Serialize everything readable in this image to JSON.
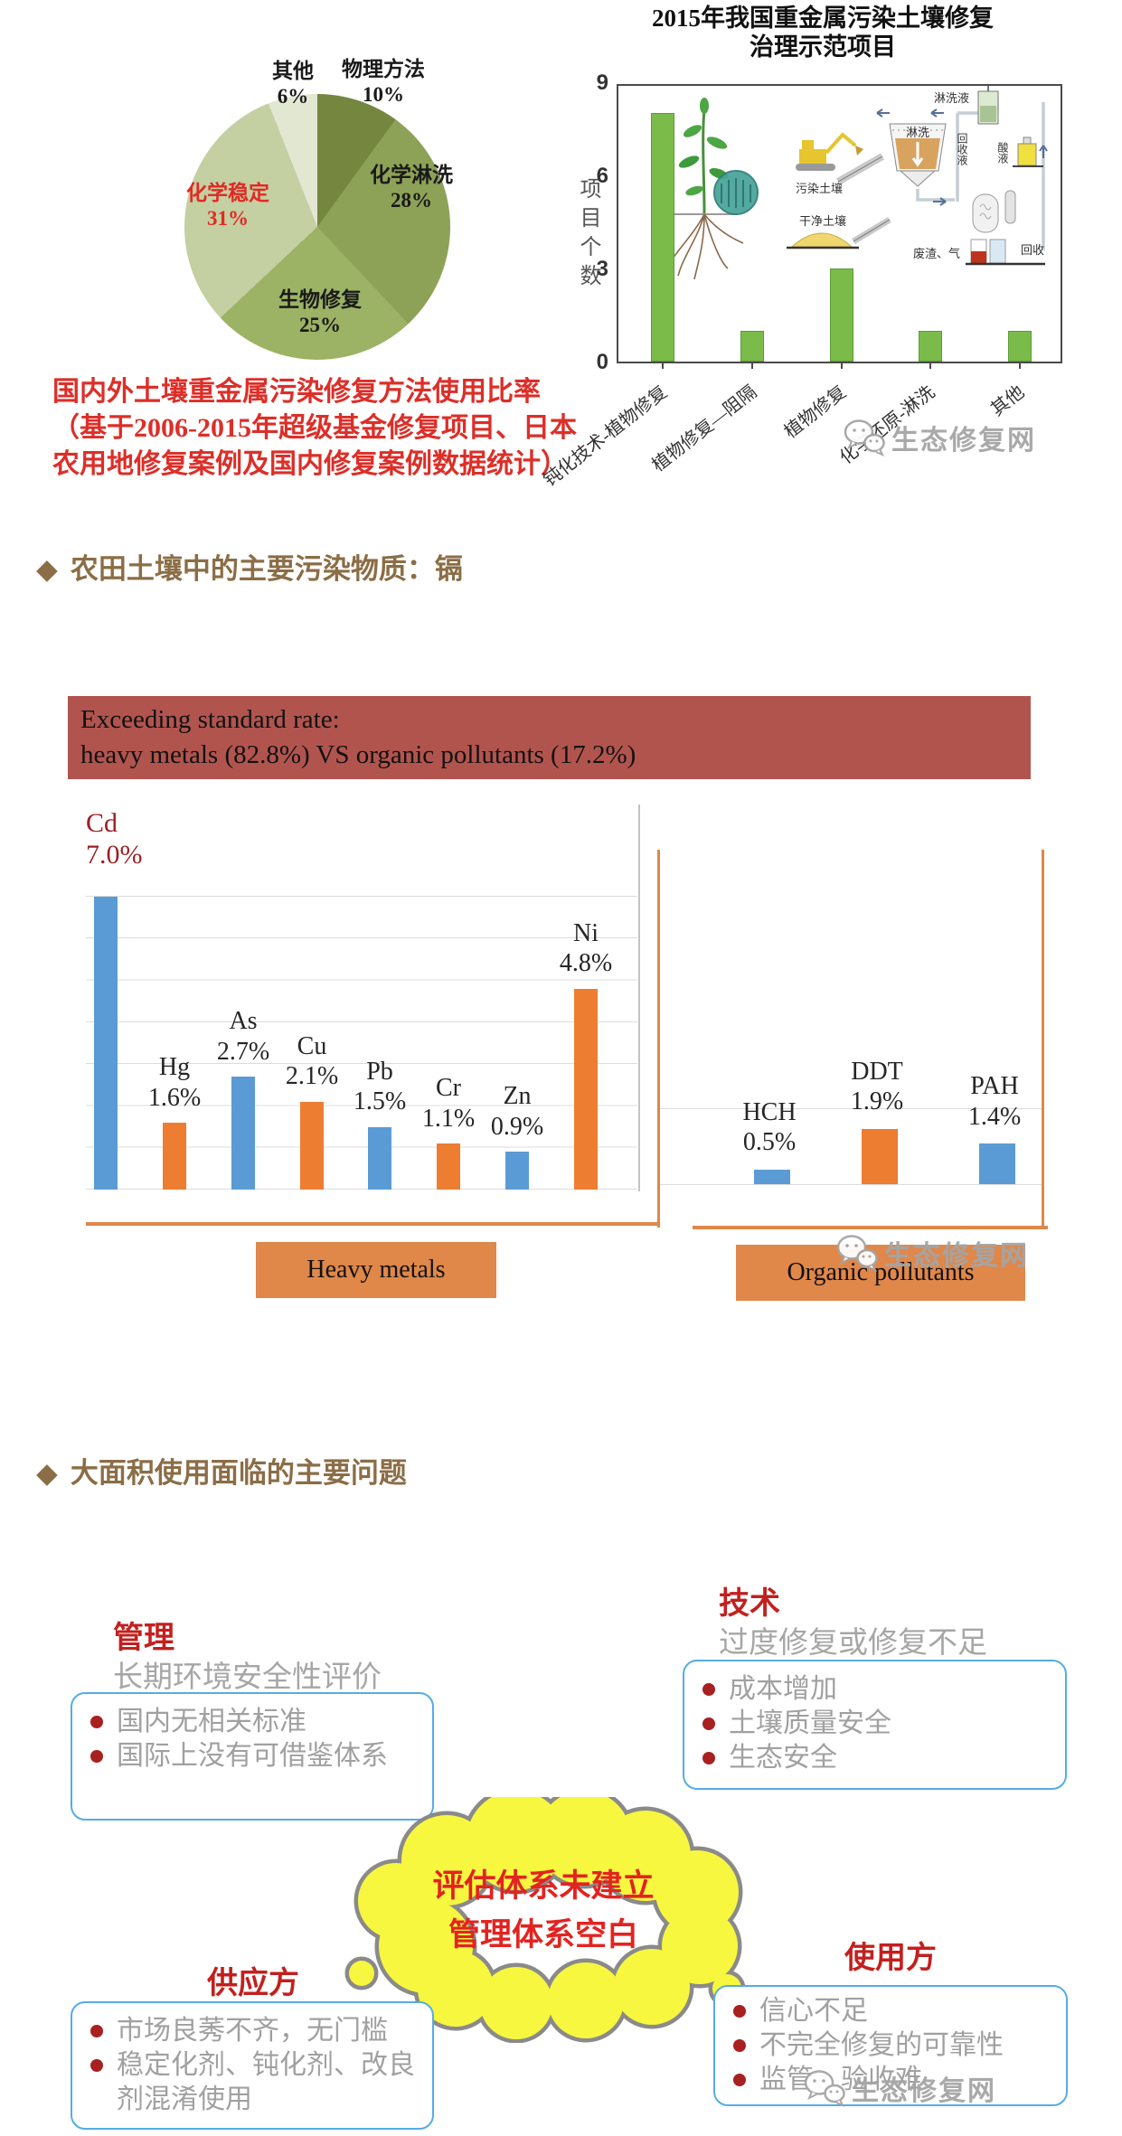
{
  "watermark": {
    "label": "生态修复网"
  },
  "top_section": {
    "caption_line1": "国内外土壤重金属污染修复方法使用比率",
    "caption_line2": "（基于2006-2015年超级基金修复项目、日本",
    "caption_line3": "农用地修复案例及国内修复案例数据统计）",
    "bar_title_line1": "2015年我国重金属污染土壤修复",
    "bar_title_line2": "治理示范项目"
  },
  "chart_data": [
    {
      "type": "pie",
      "name": "remediation-methods-share",
      "title": "国内外土壤重金属污染修复方法使用比率",
      "labels": [
        "物理方法",
        "化学淋洗",
        "生物修复",
        "化学稳定",
        "其他"
      ],
      "values": [
        10,
        28,
        25,
        31,
        6
      ],
      "pct_labels": [
        "10%",
        "28%",
        "25%",
        "31%",
        "6%"
      ],
      "colors": [
        "#75863f",
        "#8da257",
        "#9cb264",
        "#c4cfa2",
        "#e2e7d2"
      ],
      "highlight_slice": "化学稳定",
      "highlight_color": "#e02a25"
    },
    {
      "type": "bar",
      "name": "demo-projects-2015",
      "title": "2015年我国重金属污染土壤修复治理示范项目",
      "ylabel": "项目个数",
      "categories": [
        "钝化技术-植物修复",
        "植物修复—阻隔",
        "植物修复",
        "化学还原-淋洗",
        "其他"
      ],
      "values": [
        8,
        1,
        3,
        1,
        1
      ],
      "ylim": [
        0,
        9
      ],
      "yticks": [
        0,
        3,
        6,
        9
      ],
      "bar_color": "#7abb4a",
      "inset_labels": [
        "淋洗液",
        "污染土壤",
        "淋洗",
        "回收液",
        "酸液",
        "干净土壤",
        "废渣、气",
        "回收"
      ]
    },
    {
      "type": "bar",
      "name": "heavy-metals-exceeding-rate",
      "group_label": "Heavy metals",
      "categories": [
        "Cd",
        "Hg",
        "As",
        "Cu",
        "Pb",
        "Cr",
        "Zn",
        "Ni"
      ],
      "values": [
        7.0,
        1.6,
        2.7,
        2.1,
        1.5,
        1.1,
        0.9,
        4.8
      ],
      "value_labels": [
        "7.0%",
        "1.6%",
        "2.7%",
        "2.1%",
        "1.5%",
        "1.1%",
        "0.9%",
        "4.8%"
      ],
      "bar_colors": [
        "#5b9bd5",
        "#ed7d31"
      ],
      "highlight_category": "Cd",
      "highlight_color": "#9c1f24"
    },
    {
      "type": "bar",
      "name": "organic-pollutants-exceeding-rate",
      "group_label": "Organic pollutants",
      "categories": [
        "HCH",
        "DDT",
        "PAH"
      ],
      "values": [
        0.5,
        1.9,
        1.4
      ],
      "value_labels": [
        "0.5%",
        "1.9%",
        "1.4%"
      ],
      "bar_colors": [
        "#5b9bd5",
        "#ed7d31"
      ]
    }
  ],
  "pollutant_section": {
    "header_bullet": "◆",
    "header": "农田土壤中的主要污染物质：镉",
    "banner_line1": "Exceeding standard rate:",
    "banner_line2": "heavy metals (82.8%) VS organic pollutants (17.2%)",
    "metals_box_label": "Heavy metals",
    "organics_box_label": "Organic pollutants"
  },
  "problems_section": {
    "header_bullet": "◆",
    "header": "大面积使用面临的主要问题",
    "cloud_line1": "评估体系未建立",
    "cloud_line2": "管理体系空白",
    "groups": [
      {
        "id": "management",
        "title": "管理",
        "subtitle": "长期环境安全性评价",
        "items": [
          "国内无相关标准",
          "国际上没有可借鉴体系"
        ]
      },
      {
        "id": "technology",
        "title": "技术",
        "subtitle": "过度修复或修复不足",
        "items": [
          "成本增加",
          "土壤质量安全",
          "生态安全"
        ]
      },
      {
        "id": "supplier",
        "title": "供应方",
        "subtitle": "",
        "items": [
          "市场良莠不齐，无门槛",
          "稳定化剂、钝化剂、改良剂混淆使用"
        ]
      },
      {
        "id": "consumer",
        "title": "使用方",
        "subtitle": "",
        "items": [
          "信心不足",
          "不完全修复的可靠性",
          "监管、验收难"
        ]
      }
    ]
  },
  "colors": {
    "section_header_brown": "#8b6d46",
    "caption_red": "#dd2e28",
    "group_title_red": "#c2201e",
    "bullet_dot_red": "#a92021",
    "body_gray": "#a0a0a0",
    "box_border_blue": "#55ace6",
    "cloud_fill": "#f7f73f",
    "cloud_border": "#8a8a8a",
    "cloud_text_red": "#e32320",
    "bar_blue": "#5b9bd5",
    "bar_orange": "#ed7d31",
    "bar_green": "#7abb4a",
    "axis_orange": "#e0874a",
    "banner_bg": "#b2544e",
    "watermark_gray": "#a5a5a5"
  }
}
